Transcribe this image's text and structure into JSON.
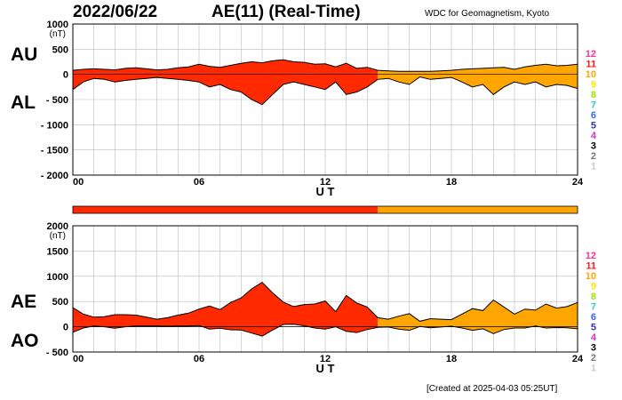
{
  "header": {
    "date": "2022/06/22",
    "title": "AE(11) (Real-Time)",
    "source": "WDC for Geomagnetism, Kyoto"
  },
  "footer": {
    "created": "[Created at 2025-04-03 05:25UT]"
  },
  "colors": {
    "final_red": "#ff2a00",
    "realtime_orange": "#ffa500",
    "line": "#000000"
  },
  "legend": {
    "items": [
      {
        "label": "12",
        "color": "#ff3399"
      },
      {
        "label": "11",
        "color": "#ff1a1a"
      },
      {
        "label": "10",
        "color": "#ffa500"
      },
      {
        "label": "9",
        "color": "#ffe600"
      },
      {
        "label": "8",
        "color": "#99e600"
      },
      {
        "label": "7",
        "color": "#33cccc"
      },
      {
        "label": "6",
        "color": "#3366ff"
      },
      {
        "label": "5",
        "color": "#3333cc"
      },
      {
        "label": "4",
        "color": "#cc33cc"
      },
      {
        "label": "3",
        "color": "#000000"
      },
      {
        "label": "2",
        "color": "#777777"
      },
      {
        "label": "1",
        "color": "#cccccc"
      }
    ]
  },
  "chart_data": [
    {
      "type": "area",
      "panel": "AU/AL",
      "labels": {
        "upper": "AU",
        "lower": "AL"
      },
      "unit": "(nT)",
      "xlabel": "U T",
      "x_ticks": [
        "00",
        "06",
        "12",
        "18",
        "24"
      ],
      "y_ticks": [
        "1000",
        "500",
        "0",
        "- 500",
        "- 1000",
        "- 1500",
        "- 2000"
      ],
      "xlim": [
        0,
        24
      ],
      "ylim": [
        -2000,
        1000
      ],
      "color_switch_hour": 14.5,
      "x": [
        0,
        0.5,
        1,
        1.5,
        2,
        2.5,
        3,
        3.5,
        4,
        4.5,
        5,
        5.5,
        6,
        6.5,
        7,
        7.5,
        8,
        8.5,
        9,
        9.5,
        10,
        10.5,
        11,
        11.5,
        12,
        12.5,
        13,
        13.5,
        14,
        14.5,
        15,
        15.5,
        16,
        16.5,
        17,
        17.5,
        18,
        18.5,
        19,
        19.5,
        20,
        20.5,
        21,
        21.5,
        22,
        22.5,
        23,
        23.5,
        24
      ],
      "series": [
        {
          "name": "AU",
          "values": [
            80,
            100,
            110,
            100,
            90,
            120,
            130,
            110,
            90,
            100,
            130,
            150,
            200,
            160,
            140,
            180,
            220,
            250,
            230,
            270,
            290,
            250,
            240,
            200,
            210,
            150,
            220,
            120,
            140,
            80,
            70,
            60,
            60,
            60,
            60,
            70,
            80,
            100,
            110,
            120,
            130,
            140,
            100,
            150,
            180,
            200,
            170,
            180,
            200
          ]
        },
        {
          "name": "AL",
          "values": [
            -300,
            -150,
            -80,
            -100,
            -150,
            -120,
            -100,
            -80,
            -60,
            -80,
            -100,
            -120,
            -150,
            -250,
            -200,
            -300,
            -350,
            -500,
            -600,
            -400,
            -200,
            -150,
            -200,
            -250,
            -300,
            -150,
            -400,
            -350,
            -250,
            -100,
            -80,
            -150,
            -200,
            -50,
            -100,
            -80,
            -60,
            -150,
            -250,
            -200,
            -400,
            -250,
            -150,
            -200,
            -150,
            -250,
            -200,
            -220,
            -280
          ]
        }
      ]
    },
    {
      "type": "area",
      "panel": "AE/AO",
      "labels": {
        "upper": "AE",
        "lower": "AO"
      },
      "unit": "(nT)",
      "xlabel": "U T",
      "x_ticks": [
        "00",
        "06",
        "12",
        "18",
        "24"
      ],
      "y_ticks": [
        "2000",
        "1500",
        "1000",
        "500",
        "0",
        "- 500"
      ],
      "xlim": [
        0,
        24
      ],
      "ylim": [
        -500,
        2000
      ],
      "color_switch_hour": 14.5,
      "x": [
        0,
        0.5,
        1,
        1.5,
        2,
        2.5,
        3,
        3.5,
        4,
        4.5,
        5,
        5.5,
        6,
        6.5,
        7,
        7.5,
        8,
        8.5,
        9,
        9.5,
        10,
        10.5,
        11,
        11.5,
        12,
        12.5,
        13,
        13.5,
        14,
        14.5,
        15,
        15.5,
        16,
        16.5,
        17,
        17.5,
        18,
        18.5,
        19,
        19.5,
        20,
        20.5,
        21,
        21.5,
        22,
        22.5,
        23,
        23.5,
        24
      ],
      "series": [
        {
          "name": "AE",
          "values": [
            380,
            250,
            190,
            200,
            240,
            240,
            230,
            190,
            150,
            180,
            230,
            270,
            350,
            410,
            340,
            480,
            570,
            750,
            880,
            670,
            490,
            400,
            440,
            450,
            510,
            300,
            620,
            470,
            390,
            180,
            150,
            210,
            260,
            110,
            160,
            150,
            140,
            250,
            360,
            320,
            530,
            390,
            250,
            350,
            330,
            450,
            370,
            400,
            480
          ]
        },
        {
          "name": "AO",
          "values": [
            -110,
            -25,
            15,
            0,
            -30,
            0,
            15,
            15,
            15,
            10,
            15,
            15,
            25,
            -45,
            -30,
            -60,
            -65,
            -125,
            -185,
            -65,
            45,
            50,
            20,
            -25,
            -45,
            0,
            -90,
            -115,
            -55,
            -10,
            -5,
            -45,
            -70,
            5,
            -20,
            -5,
            10,
            -25,
            -70,
            -40,
            -135,
            -55,
            -25,
            -25,
            15,
            -25,
            -15,
            -20,
            -40
          ]
        }
      ]
    }
  ]
}
